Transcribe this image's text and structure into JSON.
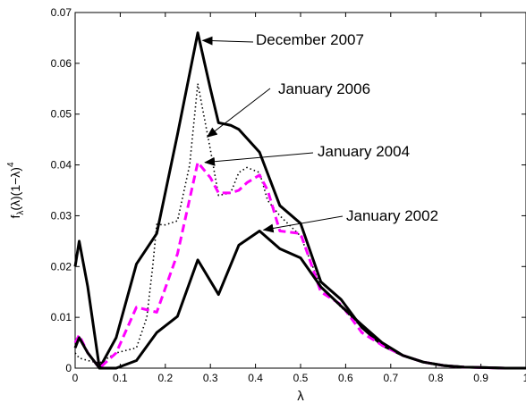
{
  "chart_data": {
    "type": "line",
    "xlabel": "λ",
    "ylabel_main": "f",
    "ylabel_sub": "λ",
    "ylabel_rest": "(λ)(1−λ)",
    "ylabel_sup": "4",
    "xlim": [
      0,
      1
    ],
    "ylim": [
      0,
      0.07
    ],
    "xticks": [
      0,
      0.1,
      0.2,
      0.3,
      0.4,
      0.5,
      0.6,
      0.7,
      0.8,
      0.9,
      1
    ],
    "xtick_labels": [
      "0",
      "0.1",
      "0.2",
      "0.3",
      "0.4",
      "0.5",
      "0.6",
      "0.7",
      "0.8",
      "0.9",
      "1"
    ],
    "yticks": [
      0,
      0.01,
      0.02,
      0.03,
      0.04,
      0.05,
      0.06,
      0.07
    ],
    "ytick_labels": [
      "0",
      "0.01",
      "0.02",
      "0.03",
      "0.04",
      "0.05",
      "0.06",
      "0.07"
    ],
    "grid": false,
    "series": [
      {
        "name": "December 2007",
        "color": "#000000",
        "style": "solid",
        "x": [
          0,
          0.009,
          0.028,
          0.054,
          0.091,
          0.136,
          0.181,
          0.227,
          0.272,
          0.3,
          0.318,
          0.345,
          0.363,
          0.409,
          0.454,
          0.5,
          0.545,
          0.59,
          0.636,
          0.681,
          0.727,
          0.772,
          0.818,
          0.863,
          0.909,
          0.954,
          1.0
        ],
        "y": [
          0.02,
          0.025,
          0.016,
          0.0,
          0.006,
          0.0205,
          0.0265,
          0.046,
          0.066,
          0.055,
          0.0483,
          0.0478,
          0.047,
          0.0425,
          0.032,
          0.0285,
          0.017,
          0.0135,
          0.008,
          0.0045,
          0.0025,
          0.0012,
          0.0005,
          0.0002,
          0.0001,
          0.0,
          0.0
        ]
      },
      {
        "name": "January 2006",
        "color": "#000000",
        "style": "dotted",
        "x": [
          0,
          0.009,
          0.028,
          0.054,
          0.091,
          0.136,
          0.159,
          0.172,
          0.181,
          0.2,
          0.227,
          0.254,
          0.272,
          0.3,
          0.318,
          0.345,
          0.363,
          0.381,
          0.409,
          0.427,
          0.454,
          0.5,
          0.545,
          0.59,
          0.636,
          0.681,
          0.727,
          0.772,
          0.818,
          0.863,
          0.909,
          0.954,
          1.0
        ],
        "y": [
          0.003,
          0.002,
          0.0015,
          0.001,
          0.003,
          0.004,
          0.01,
          0.02,
          0.0283,
          0.0282,
          0.029,
          0.04,
          0.056,
          0.043,
          0.034,
          0.0345,
          0.0385,
          0.0395,
          0.0385,
          0.033,
          0.03,
          0.026,
          0.016,
          0.012,
          0.008,
          0.0045,
          0.0025,
          0.0012,
          0.0005,
          0.0002,
          0.0001,
          0.0,
          0.0
        ]
      },
      {
        "name": "January 2004",
        "color": "#ff00ff",
        "style": "dashed",
        "x": [
          0,
          0.009,
          0.028,
          0.054,
          0.091,
          0.136,
          0.181,
          0.227,
          0.272,
          0.3,
          0.318,
          0.345,
          0.363,
          0.381,
          0.409,
          0.427,
          0.454,
          0.5,
          0.545,
          0.59,
          0.636,
          0.681,
          0.727,
          0.772,
          0.818,
          0.863,
          0.909,
          0.954,
          1.0
        ],
        "y": [
          0.005,
          0.0065,
          0.003,
          0.0,
          0.003,
          0.012,
          0.011,
          0.0225,
          0.0405,
          0.0375,
          0.0345,
          0.0345,
          0.035,
          0.0365,
          0.038,
          0.035,
          0.027,
          0.0265,
          0.015,
          0.0125,
          0.007,
          0.0045,
          0.0025,
          0.0012,
          0.0005,
          0.0002,
          0.0001,
          0.0,
          0.0
        ]
      },
      {
        "name": "January 2002",
        "color": "#000000",
        "style": "solid",
        "x": [
          0,
          0.009,
          0.028,
          0.054,
          0.091,
          0.136,
          0.181,
          0.227,
          0.272,
          0.318,
          0.363,
          0.409,
          0.454,
          0.5,
          0.545,
          0.59,
          0.636,
          0.681,
          0.727,
          0.772,
          0.818,
          0.863,
          0.909,
          0.954,
          1.0
        ],
        "y": [
          0.004,
          0.006,
          0.003,
          0.0,
          0.0,
          0.0015,
          0.007,
          0.0102,
          0.0213,
          0.0145,
          0.0242,
          0.027,
          0.0235,
          0.0217,
          0.016,
          0.0122,
          0.0085,
          0.005,
          0.0025,
          0.0012,
          0.0005,
          0.0002,
          0.0001,
          0.0,
          0.0
        ]
      }
    ],
    "annotations": [
      {
        "text": "December 2007",
        "point_x": 0.275,
        "point_y": 0.0645
      },
      {
        "text": "January 2006",
        "point_x": 0.285,
        "point_y": 0.0455
      },
      {
        "text": "January 2004",
        "point_x": 0.28,
        "point_y": 0.0405
      },
      {
        "text": "January 2002",
        "point_x": 0.41,
        "point_y": 0.0272
      }
    ]
  }
}
